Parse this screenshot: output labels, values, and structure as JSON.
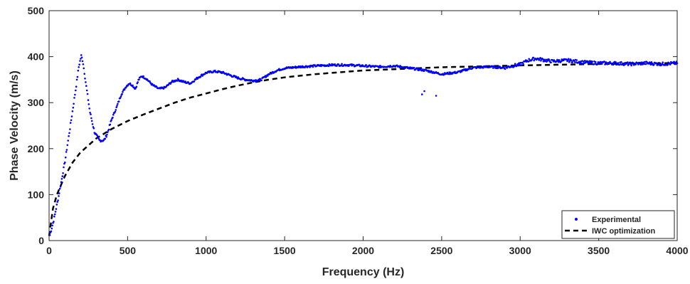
{
  "chart_data": {
    "type": "scatter",
    "title": "",
    "xlabel": "Frequency (Hz)",
    "ylabel": "Phase Velocity (m/s)",
    "xlim": [
      0,
      4000
    ],
    "ylim": [
      0,
      500
    ],
    "xticks": [
      0,
      500,
      1000,
      1500,
      2000,
      2500,
      3000,
      3500,
      4000
    ],
    "yticks": [
      0,
      100,
      200,
      300,
      400,
      500
    ],
    "grid": false,
    "legend_position": "bottom-right",
    "colors": {
      "experimental": "#0000ff",
      "fit": "#000000",
      "axis": "#262626"
    },
    "series": [
      {
        "name": "Experimental",
        "style": "markers",
        "control_points": [
          [
            5,
            12
          ],
          [
            30,
            45
          ],
          [
            60,
            95
          ],
          [
            100,
            170
          ],
          [
            140,
            260
          ],
          [
            170,
            330
          ],
          [
            190,
            380
          ],
          [
            205,
            402
          ],
          [
            215,
            390
          ],
          [
            235,
            340
          ],
          [
            260,
            280
          ],
          [
            290,
            235
          ],
          [
            320,
            218
          ],
          [
            350,
            218
          ],
          [
            370,
            232
          ],
          [
            400,
            265
          ],
          [
            430,
            290
          ],
          [
            460,
            318
          ],
          [
            490,
            335
          ],
          [
            510,
            342
          ],
          [
            530,
            338
          ],
          [
            550,
            330
          ],
          [
            570,
            350
          ],
          [
            590,
            358
          ],
          [
            620,
            352
          ],
          [
            660,
            338
          ],
          [
            700,
            330
          ],
          [
            740,
            333
          ],
          [
            780,
            345
          ],
          [
            820,
            350
          ],
          [
            860,
            345
          ],
          [
            900,
            342
          ],
          [
            950,
            355
          ],
          [
            1000,
            365
          ],
          [
            1050,
            368
          ],
          [
            1100,
            366
          ],
          [
            1150,
            360
          ],
          [
            1200,
            354
          ],
          [
            1250,
            350
          ],
          [
            1300,
            348
          ],
          [
            1350,
            350
          ],
          [
            1400,
            362
          ],
          [
            1450,
            370
          ],
          [
            1500,
            375
          ],
          [
            1600,
            378
          ],
          [
            1700,
            380
          ],
          [
            1800,
            382
          ],
          [
            1900,
            382
          ],
          [
            2000,
            380
          ],
          [
            2100,
            378
          ],
          [
            2200,
            380
          ],
          [
            2300,
            375
          ],
          [
            2400,
            370
          ],
          [
            2500,
            362
          ],
          [
            2600,
            366
          ],
          [
            2700,
            376
          ],
          [
            2800,
            378
          ],
          [
            2900,
            376
          ],
          [
            2950,
            380
          ],
          [
            3000,
            383
          ],
          [
            3050,
            392
          ],
          [
            3100,
            396
          ],
          [
            3200,
            390
          ],
          [
            3300,
            392
          ],
          [
            3400,
            388
          ],
          [
            3500,
            386
          ],
          [
            3600,
            386
          ],
          [
            3700,
            384
          ],
          [
            3800,
            386
          ],
          [
            3900,
            384
          ],
          [
            4000,
            386
          ]
        ],
        "outliers": [
          [
            2375,
            318
          ],
          [
            2390,
            325
          ],
          [
            2465,
            315
          ]
        ],
        "sample_count": 1000
      },
      {
        "name": "IWC optimization",
        "style": "dashed-line",
        "points": [
          [
            0,
            10
          ],
          [
            25,
            70
          ],
          [
            50,
            100
          ],
          [
            100,
            140
          ],
          [
            150,
            170
          ],
          [
            200,
            192
          ],
          [
            300,
            222
          ],
          [
            400,
            243
          ],
          [
            500,
            260
          ],
          [
            600,
            274
          ],
          [
            700,
            287
          ],
          [
            800,
            300
          ],
          [
            900,
            311
          ],
          [
            1000,
            320
          ],
          [
            1100,
            329
          ],
          [
            1200,
            337
          ],
          [
            1300,
            344
          ],
          [
            1400,
            350
          ],
          [
            1500,
            355
          ],
          [
            1700,
            362
          ],
          [
            2000,
            370
          ],
          [
            2500,
            377
          ],
          [
            3000,
            381
          ],
          [
            3500,
            384
          ],
          [
            4000,
            386
          ]
        ]
      }
    ]
  }
}
